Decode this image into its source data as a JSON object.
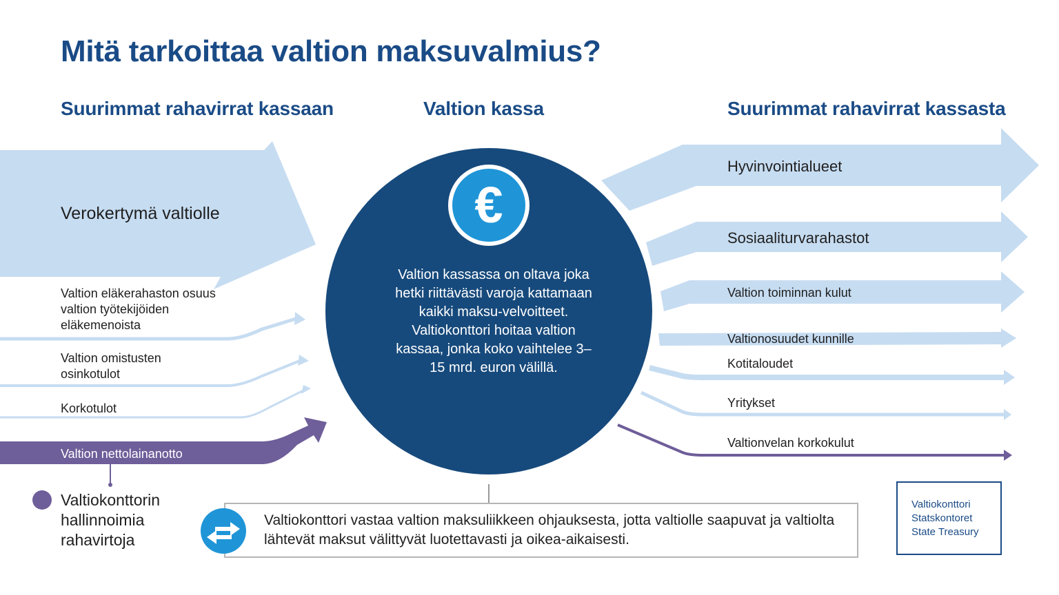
{
  "title": "Mitä tarkoittaa valtion maksuvalmius?",
  "columns": {
    "inflows": "Suurimmat rahavirrat kassaan",
    "treasury": "Valtion kassa",
    "outflows": "Suurimmat rahavirrat kassasta"
  },
  "inflows": [
    "Verokertymä valtiolle",
    "Valtion eläkerahaston osuus valtion työtekijöiden eläkemenoista",
    "Valtion omistusten osinkotulot",
    "Korkotulot",
    "Valtion nettolainanotto"
  ],
  "center": {
    "icon": "euro-icon",
    "symbol": "€",
    "text": "Valtion kassassa on oltava joka hetki riittävästi varoja kattamaan kaikki maksu-velvoitteet. Valtiokonttori hoitaa valtion kassaa, jonka koko vaihtelee 3–15 mrd. euron välillä."
  },
  "outflows": [
    "Hyvinvointialueet",
    "Sosiaaliturvarahastot",
    "Valtion toiminnan kulut",
    "Valtionosuudet kunnille",
    "Kotitaloudet",
    "Yritykset",
    "Valtionvelan korkokulut"
  ],
  "legend": "Valtiokonttorin hallinnoimia rahavirtoja",
  "note": {
    "icon": "transfer-arrows-icon",
    "text": "Valtiokonttori vastaa valtion maksuliikkeen ohjauksesta, jotta valtiolle saapuvat ja valtiolta lähtevät maksut välittyvät luotettavasti ja oikea-aikaisesti."
  },
  "logo": {
    "line1": "Valtiokonttori",
    "line2": "Statskontoret",
    "line3": "State Treasury"
  },
  "colors": {
    "navy": "#174a7c",
    "light_blue": "#c6dcf1",
    "purple": "#6e5e99",
    "bright_blue": "#1f95d8",
    "title_blue": "#1a4b86"
  }
}
